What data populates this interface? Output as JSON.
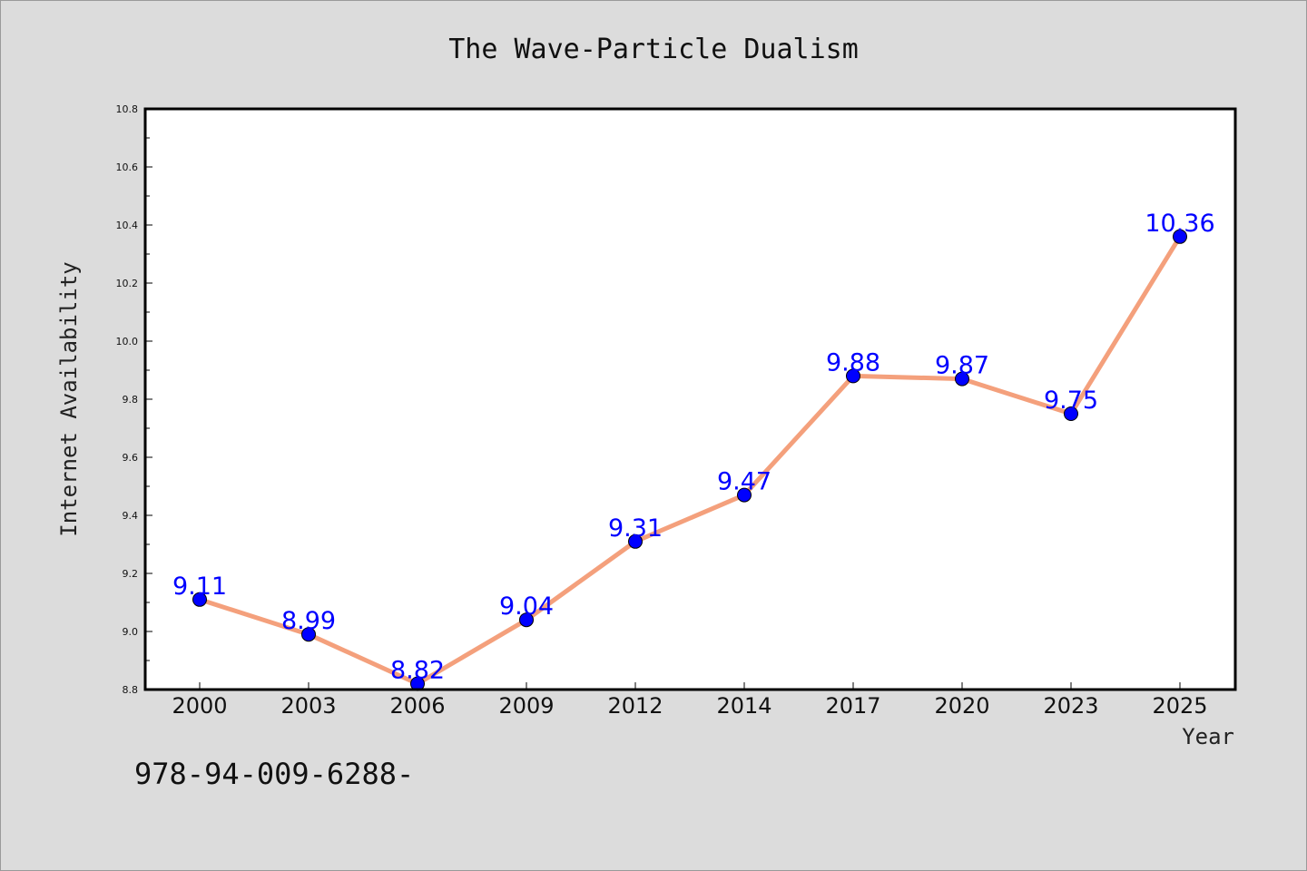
{
  "chart_data": {
    "type": "line",
    "title": "The Wave-Particle Dualism",
    "xlabel": "Year",
    "ylabel": "Internet Availability",
    "categories": [
      "2000",
      "2003",
      "2006",
      "2009",
      "2012",
      "2014",
      "2017",
      "2020",
      "2023",
      "2025"
    ],
    "series": [
      {
        "values": [
          9.11,
          8.99,
          8.82,
          9.04,
          9.31,
          9.47,
          9.88,
          9.87,
          9.75,
          10.36
        ],
        "data_labels": [
          "9.11",
          "8.99",
          "8.82",
          "9.04",
          "9.31",
          "9.47",
          "9.88",
          "9.87",
          "9.75",
          "10.36"
        ],
        "line_color": "#f4a07c",
        "marker_color": "#0000ff"
      }
    ],
    "ylim": [
      8.8,
      10.8
    ],
    "yticks": [
      "8.8",
      "9.0",
      "9.2",
      "9.4",
      "9.6",
      "9.8",
      "10.0",
      "10.2",
      "10.4",
      "10.6",
      "10.8"
    ],
    "grid": false,
    "legend": "none",
    "plot_background": "#ffffff",
    "page_background": "#dcdcdc",
    "label_color": "#0000ff"
  },
  "footer_text": "978-94-009-6288-"
}
